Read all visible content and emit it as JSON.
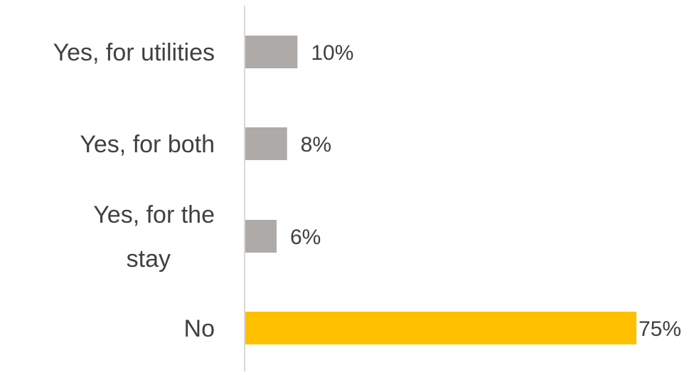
{
  "chart_data": {
    "type": "bar",
    "orientation": "horizontal",
    "title": "",
    "xlabel": "",
    "ylabel": "",
    "categories": [
      "Yes, for utilities",
      "Yes, for both",
      "Yes, for the stay",
      "No"
    ],
    "values": [
      10,
      8,
      6,
      75
    ],
    "value_labels": [
      "10%",
      "8%",
      "6%",
      "75%"
    ],
    "unit": "%",
    "xlim": [
      0,
      75
    ],
    "grid": false,
    "legend": "none",
    "colors": {
      "default_bar": "#ADAAA8",
      "highlight_bar": "#FFC000",
      "axis": "#D9D9D9",
      "text": "#404040"
    },
    "highlight_index": 3
  }
}
